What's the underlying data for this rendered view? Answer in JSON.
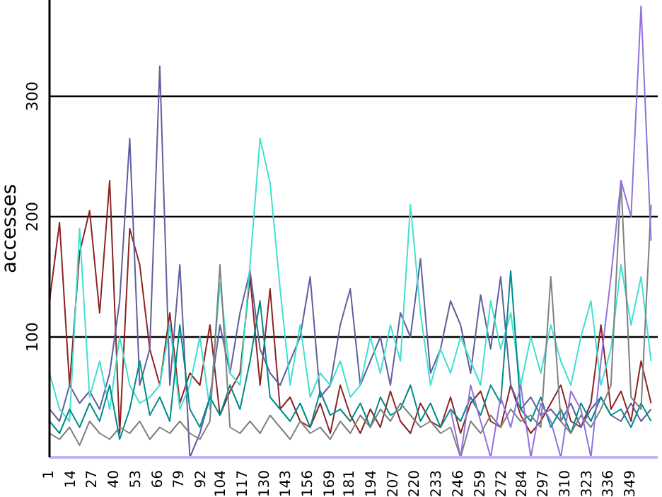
{
  "chart_data": {
    "type": "line",
    "ylabel": "accesses",
    "x": [
      1,
      7,
      13,
      19,
      25,
      31,
      37,
      43,
      49,
      55,
      61,
      67,
      73,
      79,
      85,
      91,
      97,
      103,
      109,
      115,
      121,
      127,
      133,
      139,
      145,
      151,
      157,
      163,
      169,
      175,
      181,
      187,
      193,
      199,
      205,
      211,
      217,
      223,
      229,
      235,
      241,
      247,
      253,
      259,
      265,
      271,
      277,
      283,
      289,
      295,
      301,
      307,
      313,
      319,
      325,
      331,
      337,
      343,
      349,
      355,
      361
    ],
    "series": [
      {
        "color": "#8b2323",
        "values": [
          130,
          195,
          60,
          170,
          205,
          120,
          230,
          20,
          190,
          160,
          90,
          60,
          120,
          45,
          70,
          60,
          110,
          35,
          55,
          70,
          150,
          60,
          140,
          40,
          50,
          30,
          25,
          45,
          20,
          60,
          35,
          20,
          40,
          25,
          55,
          30,
          20,
          45,
          30,
          25,
          50,
          20,
          45,
          55,
          30,
          25,
          60,
          35,
          20,
          30,
          45,
          60,
          30,
          25,
          45,
          110,
          40,
          55,
          30,
          80,
          45
        ]
      },
      {
        "color": "#5f5f9f",
        "values": [
          40,
          30,
          60,
          45,
          55,
          40,
          70,
          130,
          265,
          60,
          90,
          325,
          60,
          160,
          0,
          20,
          50,
          110,
          70,
          120,
          155,
          90,
          70,
          60,
          80,
          100,
          150,
          50,
          60,
          110,
          140,
          60,
          80,
          100,
          60,
          120,
          100,
          165,
          70,
          90,
          130,
          110,
          70,
          135,
          90,
          150,
          60,
          40,
          50,
          35,
          40,
          30,
          45,
          25,
          40,
          50,
          35,
          30,
          45,
          30,
          40
        ]
      },
      {
        "color": "#40e0d0",
        "values": [
          70,
          40,
          30,
          190,
          50,
          80,
          40,
          100,
          60,
          45,
          50,
          60,
          110,
          40,
          60,
          100,
          40,
          145,
          70,
          60,
          160,
          265,
          228,
          140,
          60,
          110,
          50,
          70,
          60,
          80,
          50,
          60,
          100,
          70,
          110,
          80,
          210,
          120,
          60,
          90,
          70,
          100,
          80,
          60,
          130,
          90,
          120,
          60,
          100,
          70,
          110,
          80,
          60,
          100,
          130,
          60,
          90,
          160,
          110,
          150,
          80
        ]
      },
      {
        "color": "#008b8b",
        "values": [
          30,
          20,
          40,
          25,
          45,
          30,
          60,
          15,
          40,
          80,
          35,
          50,
          30,
          110,
          40,
          25,
          50,
          35,
          60,
          40,
          80,
          130,
          50,
          40,
          30,
          45,
          25,
          55,
          35,
          40,
          30,
          45,
          25,
          50,
          35,
          40,
          60,
          30,
          45,
          25,
          40,
          30,
          50,
          35,
          60,
          45,
          155,
          40,
          30,
          50,
          25,
          40,
          20,
          45,
          30,
          50,
          35,
          40,
          25,
          45,
          30
        ]
      },
      {
        "color": "#808080",
        "values": [
          20,
          15,
          25,
          10,
          30,
          20,
          15,
          25,
          20,
          30,
          15,
          25,
          20,
          30,
          20,
          15,
          30,
          160,
          25,
          20,
          30,
          20,
          35,
          25,
          15,
          30,
          20,
          25,
          15,
          30,
          20,
          35,
          25,
          40,
          30,
          45,
          35,
          25,
          30,
          20,
          25,
          0,
          30,
          20,
          35,
          25,
          40,
          30,
          35,
          25,
          150,
          30,
          20,
          35,
          25,
          40,
          60,
          230,
          50,
          40,
          210
        ]
      },
      {
        "color": "#9370db",
        "x": [
          241,
          247,
          253,
          259,
          265,
          271,
          277,
          283,
          289,
          295,
          301,
          307,
          313,
          319,
          325,
          331,
          337,
          343,
          349,
          355,
          361
        ],
        "values": [
          40,
          0,
          60,
          30,
          0,
          50,
          25,
          60,
          0,
          45,
          30,
          0,
          55,
          40,
          0,
          80,
          150,
          230,
          200,
          375,
          180
        ]
      }
    ],
    "xlim": [
      1,
      365
    ],
    "xticks": [
      1,
      14,
      27,
      40,
      53,
      66,
      79,
      92,
      104,
      117,
      130,
      143,
      156,
      169,
      181,
      194,
      207,
      220,
      233,
      246,
      259,
      272,
      284,
      297,
      310,
      323,
      336,
      349
    ],
    "ylim": [
      0,
      380
    ],
    "yticks": [
      100,
      200,
      300
    ],
    "grid": "y",
    "marker": "none",
    "line_style": "solid"
  }
}
